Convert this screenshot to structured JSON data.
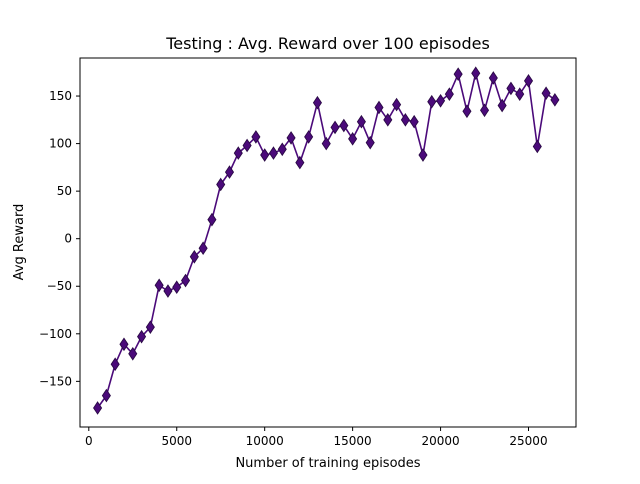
{
  "chart_data": {
    "type": "line",
    "title": "Testing : Avg. Reward over 100 episodes",
    "xlabel": "Number of training episodes",
    "ylabel": "Avg Reward",
    "xlim": [
      -500,
      27700
    ],
    "ylim": [
      -198,
      190
    ],
    "xticks": [
      0,
      5000,
      10000,
      15000,
      20000,
      25000
    ],
    "yticks": [
      -150,
      -100,
      -50,
      0,
      50,
      100,
      150
    ],
    "xtick_labels": [
      "0",
      "5000",
      "10000",
      "15000",
      "20000",
      "25000"
    ],
    "ytick_labels": [
      "−150",
      "−100",
      "−50",
      "0",
      "50",
      "100",
      "150"
    ],
    "grid": false,
    "marker": "diamond",
    "series": [
      {
        "color": "#4b0a7a",
        "x": [
          500,
          1000,
          1500,
          2000,
          2500,
          3000,
          3500,
          4000,
          4500,
          5000,
          5500,
          6000,
          6500,
          7000,
          7500,
          8000,
          8500,
          9000,
          9500,
          10000,
          10500,
          11000,
          11500,
          12000,
          12500,
          13000,
          13500,
          14000,
          14500,
          15000,
          15500,
          16000,
          16500,
          17000,
          17500,
          18000,
          18500,
          19000,
          19500,
          20000,
          20500,
          21000,
          21500,
          22000,
          22500,
          23000,
          23500,
          24000,
          24500,
          25000,
          25500,
          26000,
          26500
        ],
        "y": [
          -178,
          -165,
          -132,
          -111,
          -121,
          -103,
          -93,
          -49,
          -55,
          -51,
          -44,
          -19,
          -10,
          20,
          57,
          70,
          90,
          98,
          107,
          88,
          90,
          94,
          106,
          80,
          107,
          143,
          100,
          117,
          119,
          105,
          123,
          101,
          138,
          125,
          141,
          125,
          123,
          88,
          144,
          145,
          152,
          173,
          134,
          174,
          135,
          169,
          140,
          158,
          152,
          166,
          97,
          153,
          146
        ]
      }
    ]
  }
}
